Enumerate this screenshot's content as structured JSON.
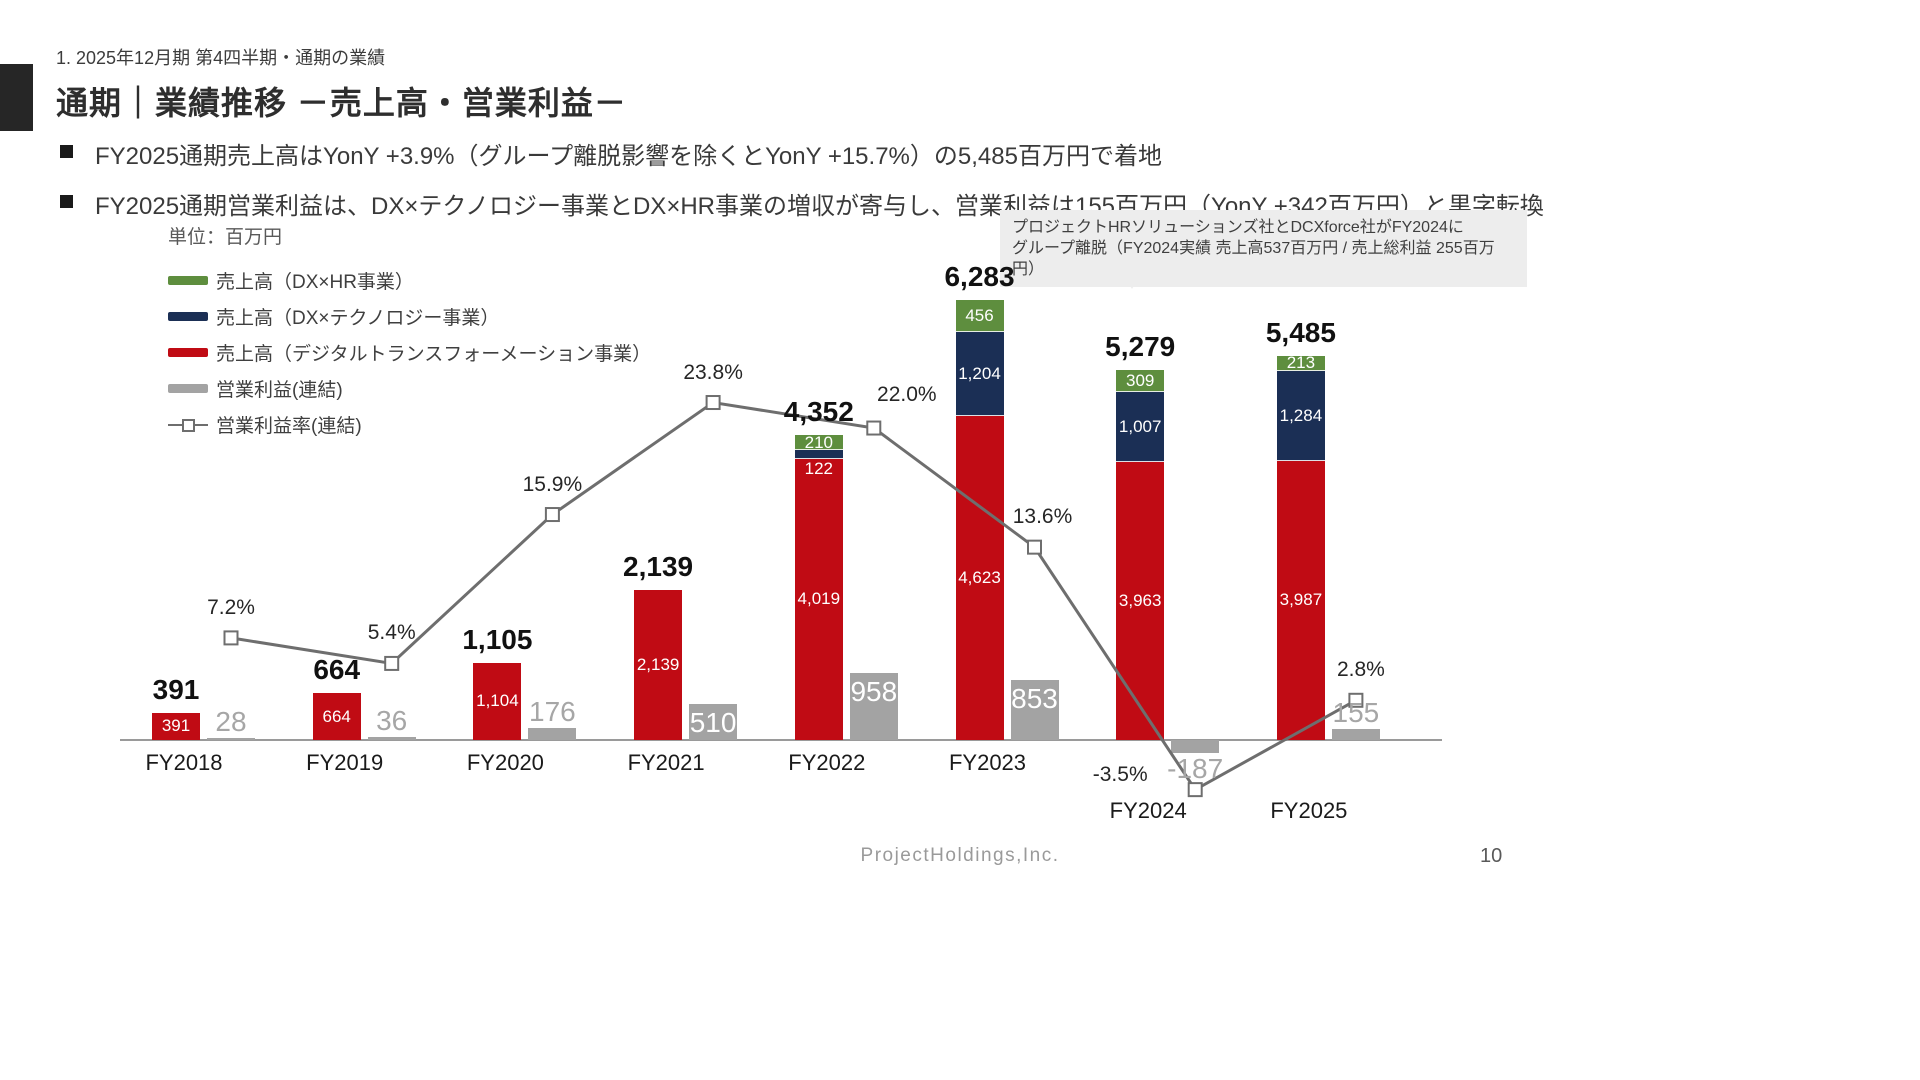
{
  "slide": {
    "eyebrow": "1. 2025年12月期 第4四半期・通期の業績",
    "title": "通期｜業績推移 －売上高・営業利益－",
    "bullets": [
      "FY2025通期売上高はYonY +3.9%（グループ離脱影響を除くとYonY +15.7%）の5,485百万円で着地",
      "FY2025通期営業利益は、DX×テクノロジー事業とDX×HR事業の増収が寄与し、営業利益は155百万円（YonY +342百万円）と黒字転換"
    ],
    "footer": "ProjectHoldings,Inc.",
    "page_number": "10"
  },
  "annotation": {
    "line1": "プロジェクトHRソリューションズ社とDCXforce社がFY2024に",
    "line2": "グループ離脱（FY2024実績 売上高537百万円 / 売上総利益 255百万円）"
  },
  "chart_data": {
    "type": "bar",
    "subtype": "stacked-bar-with-line",
    "unit_label": "単位：百万円",
    "legend_position": "upper-left",
    "grid": false,
    "categories": [
      "FY2018",
      "FY2019",
      "FY2020",
      "FY2021",
      "FY2022",
      "FY2023",
      "FY2024",
      "FY2025"
    ],
    "series": [
      {
        "key": "dx",
        "name": "売上高（デジタルトランスフォーメーション事業）",
        "type": "bar-stack",
        "color": "#c00b14",
        "values": [
          391,
          664,
          1104,
          2139,
          4019,
          4623,
          3963,
          3987
        ]
      },
      {
        "key": "tech",
        "name": "売上高（DX×テクノロジー事業）",
        "type": "bar-stack",
        "color": "#1b2f55",
        "values": [
          0,
          0,
          0,
          0,
          122,
          1204,
          1007,
          1284
        ]
      },
      {
        "key": "hr",
        "name": "売上高（DX×HR事業）",
        "type": "bar-stack",
        "color": "#5e8e3e",
        "values": [
          0,
          0,
          0,
          0,
          210,
          456,
          309,
          213
        ]
      },
      {
        "key": "op",
        "name": "営業利益(連結)",
        "type": "bar",
        "color": "#a3a3a3",
        "values": [
          28,
          36,
          176,
          510,
          958,
          853,
          -187,
          155
        ]
      },
      {
        "key": "margin",
        "name": "営業利益率(連結)",
        "type": "line",
        "unit": "%",
        "color": "#6e6e6e",
        "values": [
          7.2,
          5.4,
          15.9,
          23.8,
          22.0,
          13.6,
          -3.5,
          2.8
        ]
      }
    ],
    "totals": [
      391,
      664,
      1105,
      2139,
      4352,
      6283,
      5279,
      5485
    ],
    "total_labels": [
      "391",
      "664",
      "1,105",
      "2,139",
      "4,352",
      "6,283",
      "5,279",
      "5,485"
    ],
    "margin_labels": [
      "7.2%",
      "5.4%",
      "15.9%",
      "23.8%",
      "22.0%",
      "13.6%",
      "-3.5%",
      "2.8%"
    ]
  }
}
